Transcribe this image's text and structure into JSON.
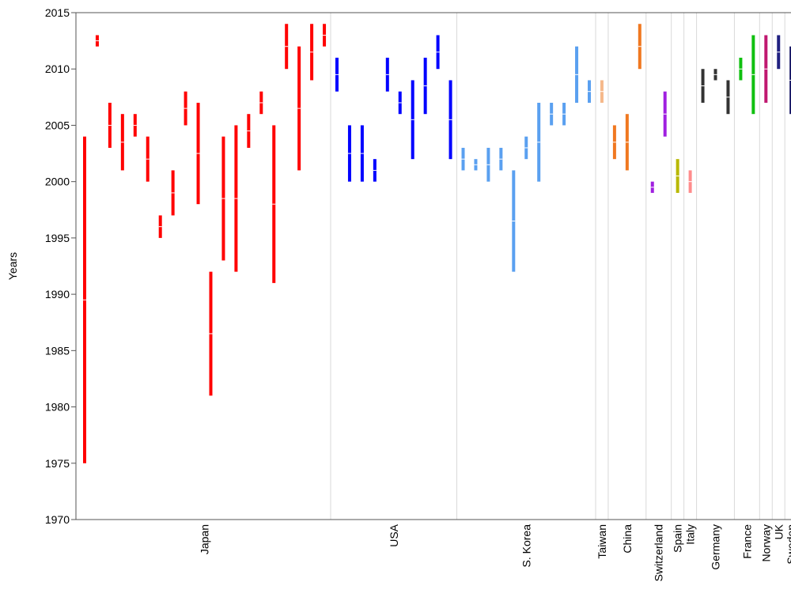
{
  "chart_data": {
    "type": "range-bar",
    "title": "",
    "ylabel": "Years",
    "xlabel": "",
    "ylim": [
      1970,
      2015
    ],
    "yticks": [
      1970,
      1975,
      1980,
      1985,
      1990,
      1995,
      2000,
      2005,
      2010,
      2015
    ],
    "grid": "vertical separators between country groups",
    "groups": [
      {
        "name": "Japan",
        "color": "#ff0000",
        "ranges": [
          [
            1975,
            2004
          ],
          [
            2012,
            2013
          ],
          [
            2003,
            2007
          ],
          [
            2001,
            2006
          ],
          [
            2004,
            2006
          ],
          [
            2000,
            2004
          ],
          [
            1995,
            1997
          ],
          [
            1997,
            2001
          ],
          [
            2005,
            2008
          ],
          [
            1998,
            2007
          ],
          [
            1981,
            1992
          ],
          [
            1993,
            2004
          ],
          [
            1992,
            2005
          ],
          [
            2003,
            2006
          ],
          [
            2006,
            2008
          ],
          [
            1991,
            2005
          ],
          [
            2010,
            2014
          ],
          [
            2001,
            2012
          ],
          [
            2009,
            2014
          ],
          [
            2012,
            2014
          ]
        ]
      },
      {
        "name": "USA",
        "color": "#0000ff",
        "ranges": [
          [
            2008,
            2011
          ],
          [
            2000,
            2005
          ],
          [
            2000,
            2005
          ],
          [
            2000,
            2002
          ],
          [
            2008,
            2011
          ],
          [
            2006,
            2008
          ],
          [
            2002,
            2009
          ],
          [
            2006,
            2011
          ],
          [
            2010,
            2013
          ],
          [
            2002,
            2009
          ]
        ]
      },
      {
        "name": "S. Korea",
        "color": "#5aa0f0",
        "ranges": [
          [
            2001,
            2003
          ],
          [
            2001,
            2002
          ],
          [
            2000,
            2003
          ],
          [
            2001,
            2003
          ],
          [
            1992,
            2001
          ],
          [
            2002,
            2004
          ],
          [
            2000,
            2007
          ],
          [
            2005,
            2007
          ],
          [
            2005,
            2007
          ],
          [
            2007,
            2012
          ],
          [
            2007,
            2009
          ]
        ]
      },
      {
        "name": "Taiwan",
        "color": "#f5b88a",
        "ranges": [
          [
            2007,
            2009
          ]
        ]
      },
      {
        "name": "China",
        "color": "#f07820",
        "ranges": [
          [
            2002,
            2005
          ],
          [
            2001,
            2006
          ],
          [
            2010,
            2014
          ]
        ]
      },
      {
        "name": "Switzerland",
        "color": "#a020e0",
        "ranges": [
          [
            1999,
            2000
          ],
          [
            2004,
            2008
          ]
        ]
      },
      {
        "name": "Spain",
        "color": "#b8b800",
        "ranges": [
          [
            1999,
            2002
          ]
        ]
      },
      {
        "name": "Italy",
        "color": "#ff8c8c",
        "ranges": [
          [
            1999,
            2001
          ]
        ]
      },
      {
        "name": "Germany",
        "color": "#333333",
        "ranges": [
          [
            2007,
            2010
          ],
          [
            2009,
            2010
          ],
          [
            2006,
            2009
          ]
        ]
      },
      {
        "name": "France",
        "color": "#10c010",
        "ranges": [
          [
            2009,
            2011
          ],
          [
            2006,
            2013
          ]
        ]
      },
      {
        "name": "Norway",
        "color": "#c01870",
        "ranges": [
          [
            2007,
            2013
          ]
        ]
      },
      {
        "name": "UK",
        "color": "#202080",
        "ranges": [
          [
            2010,
            2013
          ]
        ]
      },
      {
        "name": "Sweden",
        "color": "#101060",
        "ranges": [
          [
            2006,
            2012
          ]
        ]
      }
    ]
  }
}
